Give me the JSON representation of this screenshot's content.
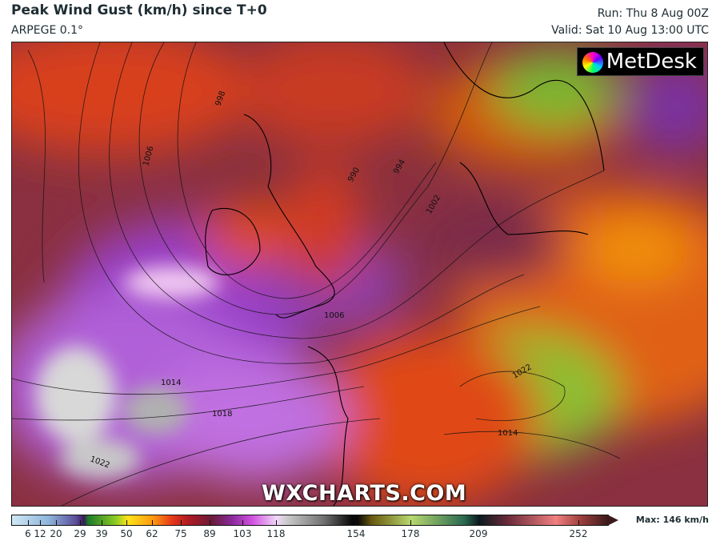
{
  "header": {
    "title": "Peak Wind Gust (km/h) since T+0",
    "model": "ARPEGE 0.1°",
    "run": "Run: Thu 8 Aug 00Z",
    "valid": "Valid: Sat 10 Aug 13:00 UTC"
  },
  "map": {
    "logo": "MetDesk",
    "watermark": "WXCHARTS.COM",
    "units": "km/h",
    "isobar_labels": [
      "998",
      "1006",
      "990",
      "994",
      "1002",
      "1006",
      "1014",
      "1018",
      "1022",
      "1022",
      "1014"
    ]
  },
  "colorbar": {
    "ticks": [
      "6",
      "12",
      "20",
      "29",
      "39",
      "50",
      "62",
      "75",
      "89",
      "103",
      "118",
      "154",
      "178",
      "209",
      "252"
    ],
    "max_label": "Max: 146 km/h"
  }
}
